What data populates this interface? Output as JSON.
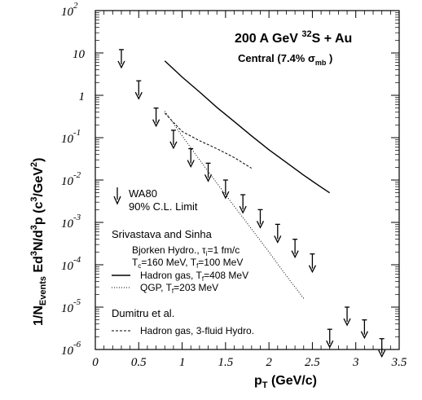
{
  "chart_data": {
    "type": "scatter",
    "title": "200 A GeV ³²S + Au",
    "title_parts": {
      "pre": "200 A GeV ",
      "sup": "32",
      "post": "S + Au"
    },
    "subtitle": "Central  (7.4% σmb )",
    "subtitle_parts": {
      "pre": "Central  (7.4% σ",
      "sub": "mb",
      "post": " )"
    },
    "xlabel": "pT (GeV/c)",
    "xlabel_parts": {
      "main": "p",
      "sub": "T",
      "post": " (GeV/c)"
    },
    "ylabel": "1/NEvents  Ed³N/d³p  (c³/GeV²)",
    "xlim": [
      0,
      3.5
    ],
    "ylim": [
      1e-06,
      100
    ],
    "yscale": "log",
    "x_ticks": [
      "0",
      "0.5",
      "1",
      "1.5",
      "2",
      "2.5",
      "3",
      "3.5"
    ],
    "x_tick_values": [
      0,
      0.5,
      1,
      1.5,
      2,
      2.5,
      3,
      3.5
    ],
    "y_ticks": [
      {
        "value": 100,
        "base": "10",
        "exp": "2"
      },
      {
        "value": 10,
        "base": "10",
        "exp": ""
      },
      {
        "value": 1,
        "base": "1",
        "exp": ""
      },
      {
        "value": 0.1,
        "base": "10",
        "exp": "-1"
      },
      {
        "value": 0.01,
        "base": "10",
        "exp": "-2"
      },
      {
        "value": 0.001,
        "base": "10",
        "exp": "-3"
      },
      {
        "value": 0.0001,
        "base": "10",
        "exp": "-4"
      },
      {
        "value": 1e-05,
        "base": "10",
        "exp": "-5"
      },
      {
        "value": 1e-06,
        "base": "10",
        "exp": "-6"
      }
    ],
    "upper_limits": {
      "name": "WA80 90% C.L. Limit",
      "x": [
        0.3,
        0.5,
        0.7,
        0.9,
        1.1,
        1.3,
        1.5,
        1.7,
        1.9,
        2.1,
        2.3,
        2.5,
        2.7,
        2.9,
        3.1,
        3.3
      ],
      "y": [
        12,
        2.2,
        0.5,
        0.15,
        0.055,
        0.025,
        0.01,
        0.0045,
        0.002,
        0.0009,
        0.0004,
        0.00018,
        3e-06,
        1e-05,
        5e-06,
        1.8e-06
      ]
    },
    "series": [
      {
        "name": "Hadron gas, Tf=408 MeV",
        "style": "solid",
        "x": [
          0.8,
          1.0,
          1.2,
          1.4,
          1.6,
          1.8,
          2.0,
          2.2,
          2.4,
          2.6,
          2.7
        ],
        "y": [
          6.5,
          2.7,
          1.2,
          0.52,
          0.24,
          0.11,
          0.052,
          0.026,
          0.013,
          0.0068,
          0.005
        ]
      },
      {
        "name": "QGP, Tf=203 MeV",
        "style": "dotted",
        "x": [
          0.8,
          1.0,
          1.2,
          1.4,
          1.6,
          1.8,
          2.0,
          2.2,
          2.4
        ],
        "y": [
          0.42,
          0.11,
          0.03,
          0.0085,
          0.0024,
          0.0007,
          0.0002,
          5.5e-05,
          1.6e-05
        ]
      },
      {
        "name": "Hadron gas, 3-fluid Hydro.",
        "style": "dashed",
        "x": [
          0.8,
          1.0,
          1.2,
          1.4,
          1.6,
          1.8
        ],
        "y": [
          0.38,
          0.14,
          0.085,
          0.055,
          0.034,
          0.019
        ]
      }
    ],
    "legend": {
      "wa80_line1": "WA80",
      "wa80_line2": "90% C.L. Limit",
      "group1": "Srivastava and Sinha",
      "bjorken": {
        "pre": "Bjorken Hydro., τ",
        "sub": "i",
        "post": "=1 fm/c"
      },
      "tc": {
        "a": "T",
        "as": "c",
        "b": "=160 MeV, T",
        "bs": "f",
        "c": "=100 MeV"
      },
      "hadron": {
        "pre": "Hadron gas, T",
        "sub": "f",
        "post": "=408 MeV"
      },
      "qgp": {
        "pre": "QGP, T",
        "sub": "f",
        "post": "=203 MeV"
      },
      "group2": "Dumitru et al.",
      "hydro3": "Hadron gas, 3-fluid Hydro."
    }
  }
}
